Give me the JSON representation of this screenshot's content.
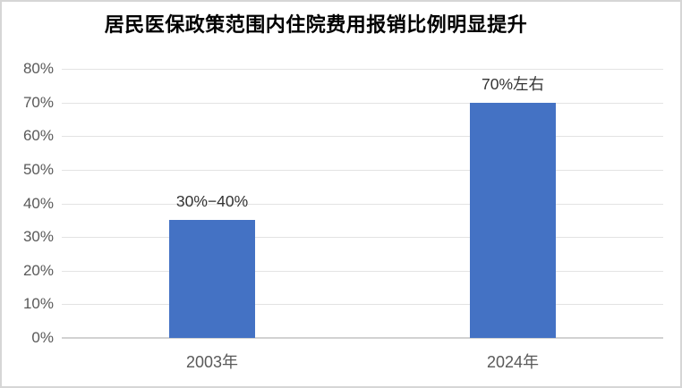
{
  "chart_data": {
    "type": "bar",
    "title": "居民医保政策范围内住院费用报销比例明显提升",
    "categories": [
      "2003年",
      "2024年"
    ],
    "values": [
      35,
      70
    ],
    "value_labels": [
      "30%−40%",
      "70%左右"
    ],
    "xlabel": "",
    "ylabel": "",
    "ylim": [
      0,
      80
    ],
    "yticks": [
      0,
      10,
      20,
      30,
      40,
      50,
      60,
      70,
      80
    ],
    "ytick_labels": [
      "0%",
      "10%",
      "20%",
      "30%",
      "40%",
      "50%",
      "60%",
      "70%",
      "80%"
    ],
    "grid": true,
    "legend": false
  },
  "colors": {
    "bar": "#4472C4",
    "gridline": "#e3e3e3",
    "axis_line": "#d2d2d2",
    "tick_text": "#595959",
    "value_label_text": "#333333",
    "title_text": "#000000",
    "border": "#d6d6d6",
    "background": "#ffffff"
  }
}
